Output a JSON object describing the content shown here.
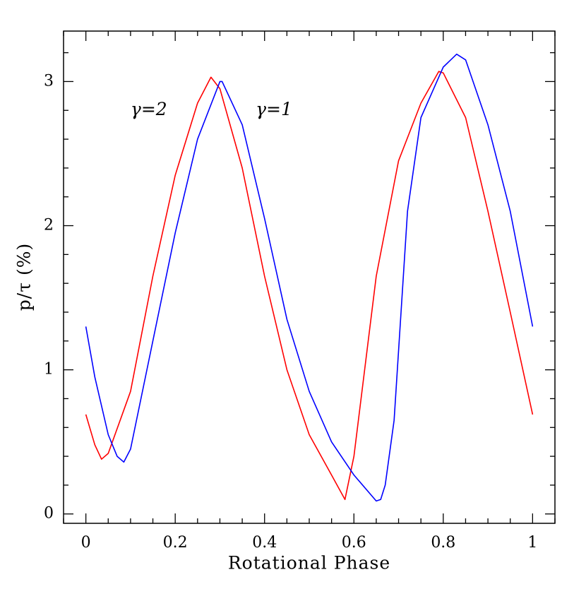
{
  "chart_data": {
    "type": "line",
    "xlabel": "Rotational Phase",
    "ylabel": "p/τ (%)",
    "xlim": [
      -0.05,
      1.05
    ],
    "ylim": [
      -0.065,
      3.35
    ],
    "xticks": [
      0,
      0.2,
      0.4,
      0.6,
      0.8,
      1
    ],
    "yticks": [
      0,
      1,
      2,
      3
    ],
    "xminor": [
      -0.05,
      0.05,
      0.1,
      0.15,
      0.25,
      0.3,
      0.35,
      0.45,
      0.5,
      0.55,
      0.65,
      0.7,
      0.75,
      0.85,
      0.9,
      0.95,
      1.05
    ],
    "yminor": [
      0.2,
      0.4,
      0.6,
      0.8,
      1.2,
      1.4,
      1.6,
      1.8,
      2.2,
      2.4,
      2.6,
      2.8,
      3.2
    ],
    "annotations": [
      {
        "text": "γ=2",
        "color": "#ff0000",
        "x": 0.1,
        "y": 2.8
      },
      {
        "text": "γ=1",
        "color": "#0000ff",
        "x": 0.38,
        "y": 2.8
      }
    ],
    "series": [
      {
        "name": "γ=2",
        "color": "#ff0000",
        "x": [
          0,
          0.02,
          0.035,
          0.05,
          0.1,
          0.15,
          0.2,
          0.25,
          0.28,
          0.3,
          0.35,
          0.4,
          0.45,
          0.5,
          0.55,
          0.58,
          0.6,
          0.65,
          0.7,
          0.75,
          0.79,
          0.8,
          0.85,
          0.9,
          0.95,
          1
        ],
        "values": [
          0.69,
          0.48,
          0.38,
          0.42,
          0.85,
          1.65,
          2.35,
          2.85,
          3.03,
          2.95,
          2.4,
          1.65,
          1.0,
          0.55,
          0.27,
          0.1,
          0.4,
          1.65,
          2.45,
          2.85,
          3.07,
          3.06,
          2.75,
          2.1,
          1.4,
          0.69
        ]
      },
      {
        "name": "γ=1",
        "color": "#0000ff",
        "x": [
          0,
          0.02,
          0.05,
          0.07,
          0.085,
          0.1,
          0.15,
          0.2,
          0.25,
          0.3,
          0.305,
          0.35,
          0.4,
          0.45,
          0.5,
          0.55,
          0.6,
          0.65,
          0.66,
          0.67,
          0.69,
          0.72,
          0.75,
          0.8,
          0.83,
          0.85,
          0.9,
          0.95,
          1
        ],
        "values": [
          1.3,
          0.95,
          0.55,
          0.4,
          0.36,
          0.45,
          1.2,
          1.95,
          2.6,
          3.0,
          3.0,
          2.7,
          2.05,
          1.35,
          0.85,
          0.5,
          0.27,
          0.09,
          0.1,
          0.2,
          0.65,
          2.1,
          2.75,
          3.1,
          3.19,
          3.15,
          2.7,
          2.1,
          1.3
        ]
      }
    ]
  }
}
